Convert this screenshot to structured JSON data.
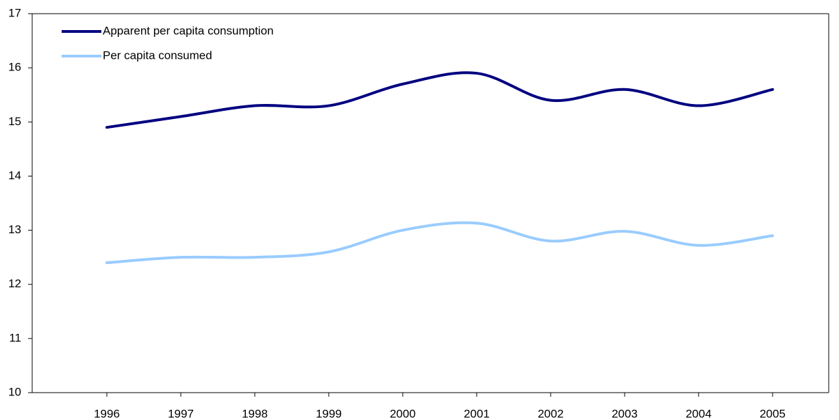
{
  "chart_data": {
    "type": "line",
    "categories": [
      "1996",
      "1997",
      "1998",
      "1999",
      "2000",
      "2001",
      "2002",
      "2003",
      "2004",
      "2005"
    ],
    "series": [
      {
        "name": "Apparent per capita consumption",
        "color": "#000080",
        "values": [
          14.9,
          15.1,
          15.3,
          15.3,
          15.7,
          15.9,
          15.4,
          15.6,
          15.3,
          15.6
        ]
      },
      {
        "name": "Per capita consumed",
        "color": "#99ccff",
        "values": [
          12.4,
          12.5,
          12.5,
          12.6,
          13.0,
          13.13,
          12.8,
          12.98,
          12.72,
          12.9
        ]
      }
    ],
    "ylim": [
      10,
      17
    ],
    "yticks": [
      10,
      11,
      12,
      13,
      14,
      15,
      16,
      17
    ],
    "legend": "upper left",
    "smooth": true
  }
}
